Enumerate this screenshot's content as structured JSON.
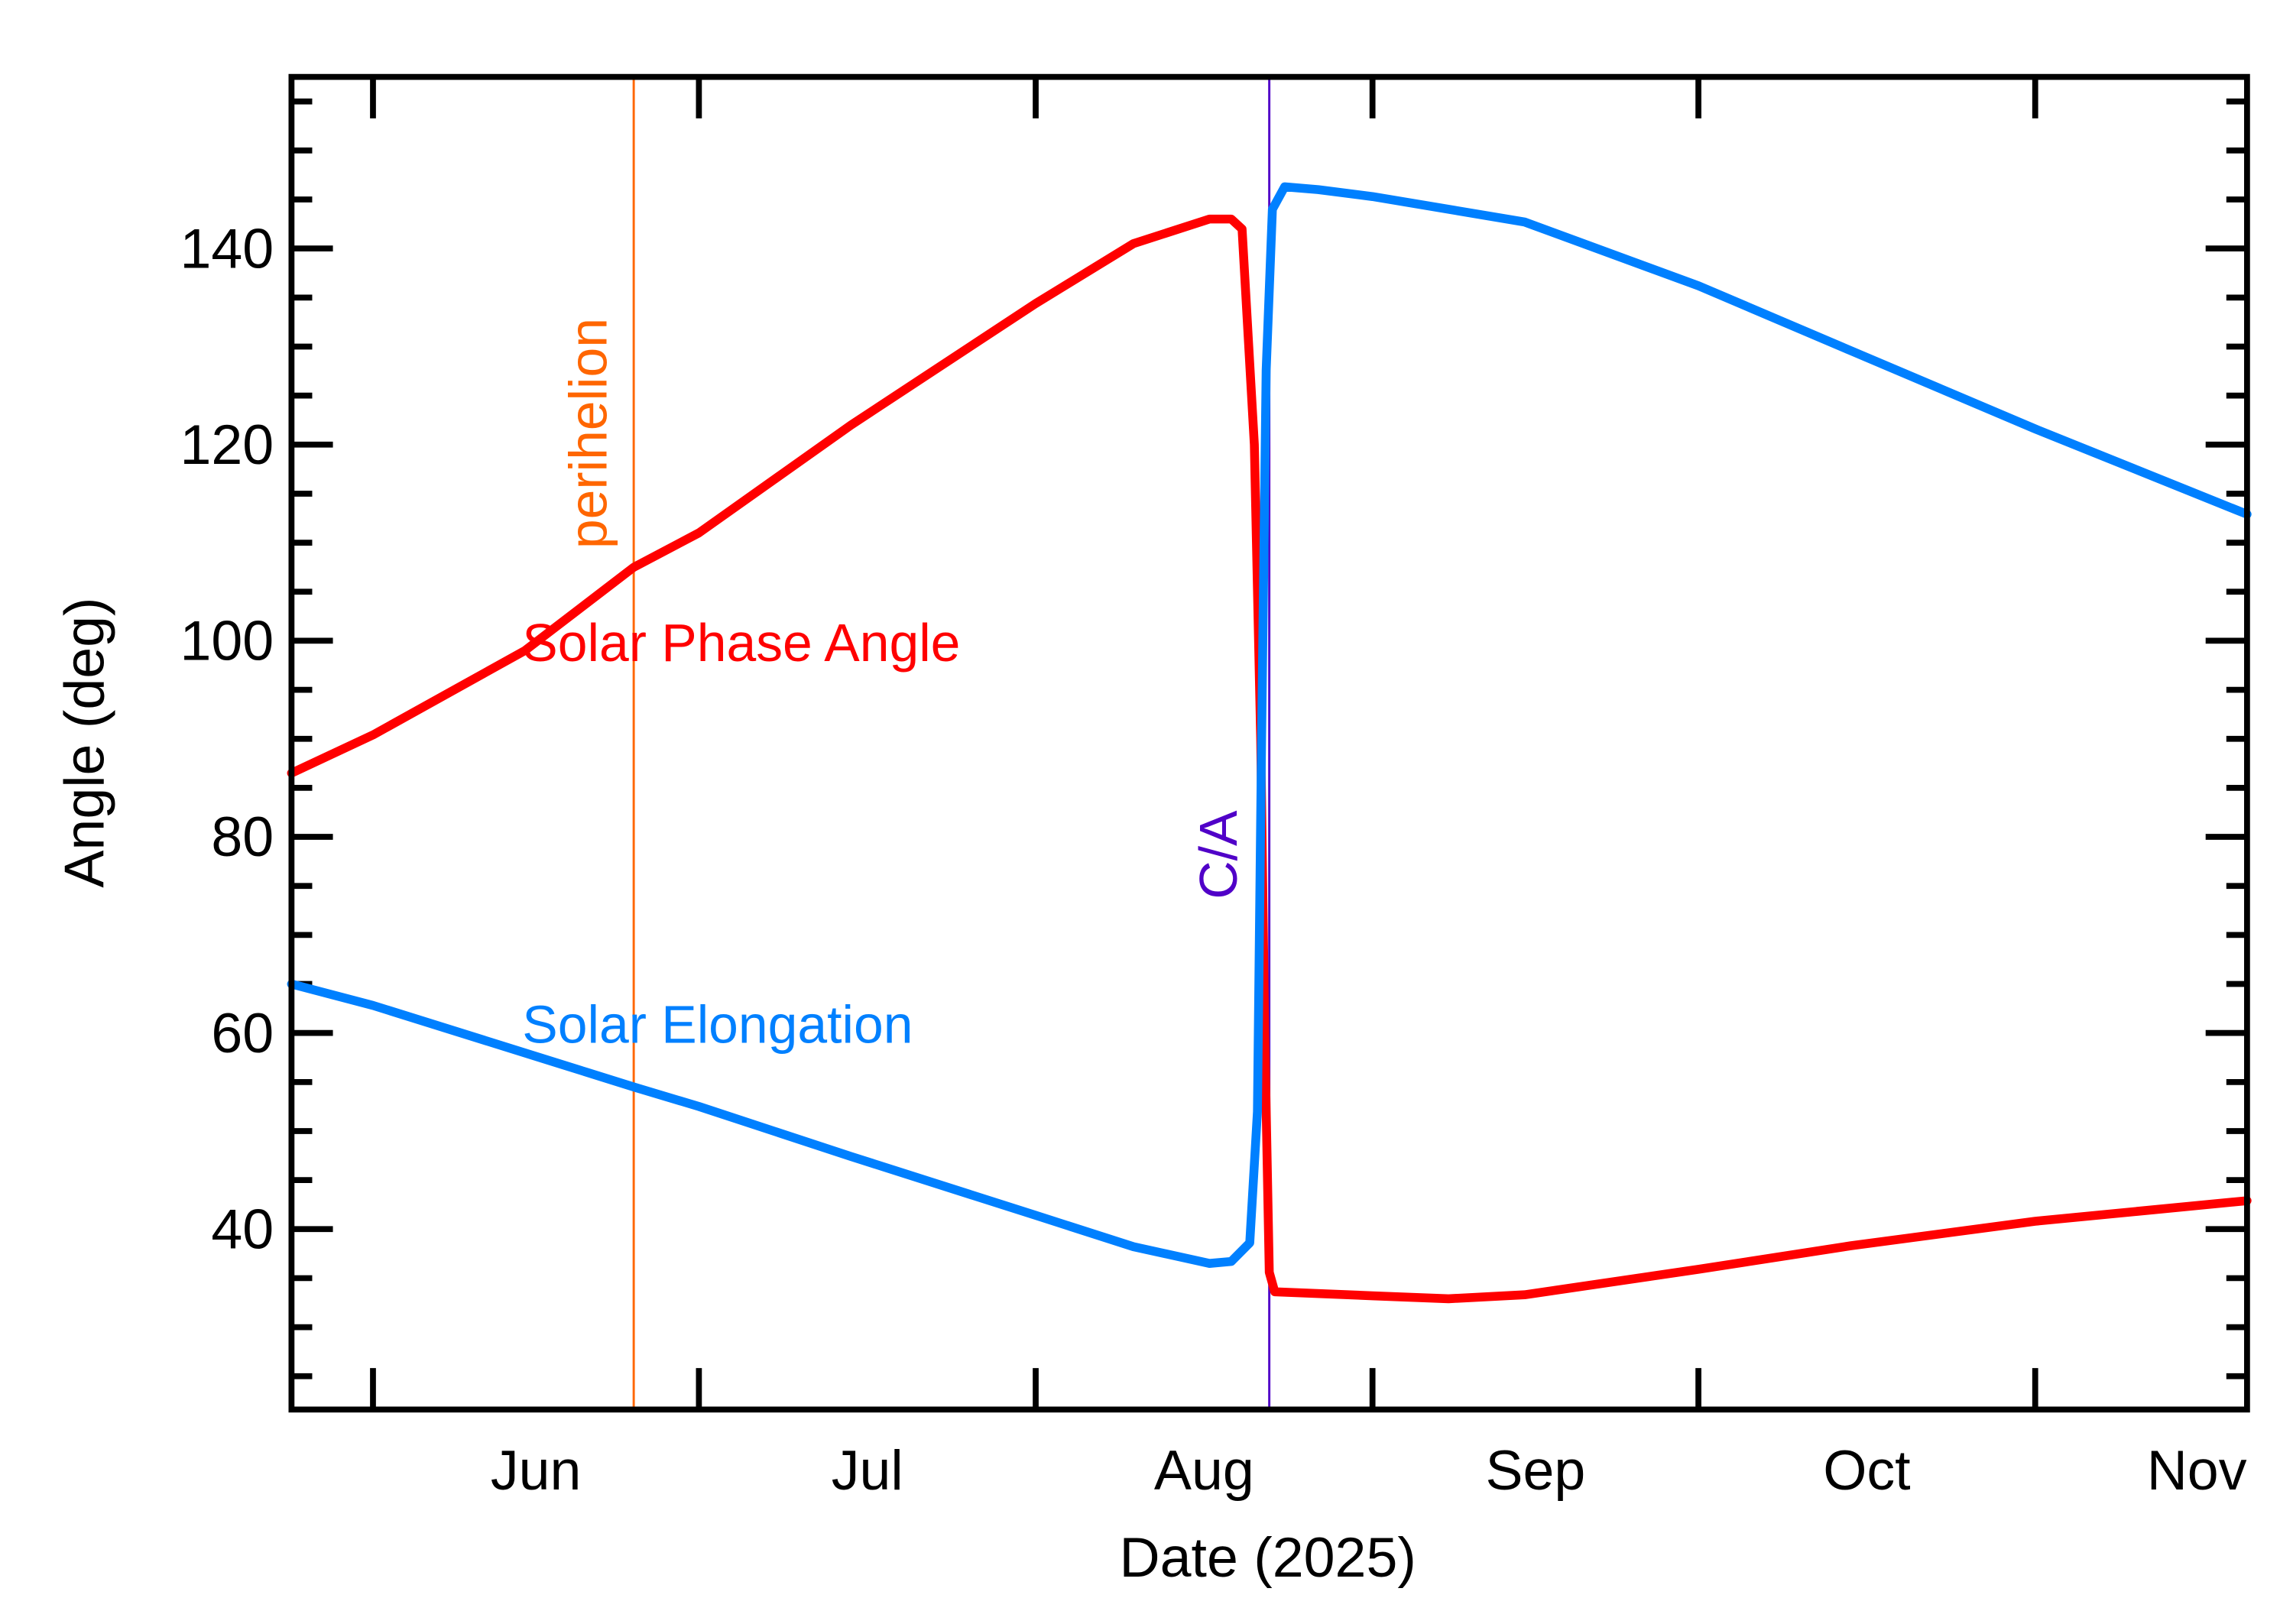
{
  "chart_data": {
    "type": "line",
    "title": "",
    "xlabel": "Date (2025)",
    "ylabel": "Angle (deg)",
    "xlim": [
      "2025-05-24T12:00",
      "2025-11-20T12:00"
    ],
    "ylim": [
      21.6,
      157.5
    ],
    "grid": false,
    "x_ticks": [
      {
        "date": "2025-06-01",
        "label": "Jun"
      },
      {
        "date": "2025-07-01",
        "label": "Jul"
      },
      {
        "date": "2025-08-01",
        "label": "Aug"
      },
      {
        "date": "2025-09-01",
        "label": "Sep"
      },
      {
        "date": "2025-10-01",
        "label": "Oct"
      },
      {
        "date": "2025-11-01",
        "label": "Nov"
      }
    ],
    "y_ticks": [
      40,
      60,
      80,
      100,
      120,
      140
    ],
    "y_minor_step": 5,
    "series": [
      {
        "name": "Solar Phase Angle",
        "color": "#ff0000",
        "points": [
          [
            "2025-05-24T12:00",
            86.5
          ],
          [
            "2025-06-01",
            90.4
          ],
          [
            "2025-06-15",
            99.0
          ],
          [
            "2025-06-25",
            107.5
          ],
          [
            "2025-07-01",
            111.0
          ],
          [
            "2025-07-15",
            122.0
          ],
          [
            "2025-08-01",
            134.4
          ],
          [
            "2025-08-10",
            140.5
          ],
          [
            "2025-08-17",
            143.0
          ],
          [
            "2025-08-19",
            143.0
          ],
          [
            "2025-08-20",
            142.0
          ],
          [
            "2025-08-21T03:00",
            120.0
          ],
          [
            "2025-08-21T17:00",
            90.0
          ],
          [
            "2025-08-22T02:00",
            60.0
          ],
          [
            "2025-08-22T12:00",
            35.6
          ],
          [
            "2025-08-23",
            33.6
          ],
          [
            "2025-09-01",
            33.2
          ],
          [
            "2025-09-08",
            32.9
          ],
          [
            "2025-09-15",
            33.3
          ],
          [
            "2025-10-01",
            35.9
          ],
          [
            "2025-10-15",
            38.3
          ],
          [
            "2025-11-01",
            40.8
          ],
          [
            "2025-11-20T12:00",
            42.9
          ]
        ]
      },
      {
        "name": "Solar Elongation",
        "color": "#0080ff",
        "points": [
          [
            "2025-05-24T12:00",
            65.0
          ],
          [
            "2025-06-01",
            62.8
          ],
          [
            "2025-06-25",
            54.5
          ],
          [
            "2025-07-01",
            52.5
          ],
          [
            "2025-07-15",
            47.4
          ],
          [
            "2025-08-01",
            41.4
          ],
          [
            "2025-08-10",
            38.2
          ],
          [
            "2025-08-17",
            36.5
          ],
          [
            "2025-08-19",
            36.7
          ],
          [
            "2025-08-20T17:00",
            38.6
          ],
          [
            "2025-08-21T10:00",
            52.0
          ],
          [
            "2025-08-21T19:00",
            90.0
          ],
          [
            "2025-08-22T05:00",
            127.6
          ],
          [
            "2025-08-22T19:00",
            144.0
          ],
          [
            "2025-08-23T22:00",
            146.3
          ],
          [
            "2025-08-27",
            146.0
          ],
          [
            "2025-09-01",
            145.3
          ],
          [
            "2025-09-15",
            142.7
          ],
          [
            "2025-10-01",
            136.2
          ],
          [
            "2025-10-15",
            129.6
          ],
          [
            "2025-11-01",
            121.6
          ],
          [
            "2025-11-20T12:00",
            112.9
          ]
        ]
      }
    ],
    "annotations": [
      {
        "label": "perihelion",
        "date": "2025-06-25",
        "color": "#ff6600"
      },
      {
        "label": "C/A",
        "date": "2025-08-22T12:00",
        "color": "#5000c8"
      }
    ]
  }
}
